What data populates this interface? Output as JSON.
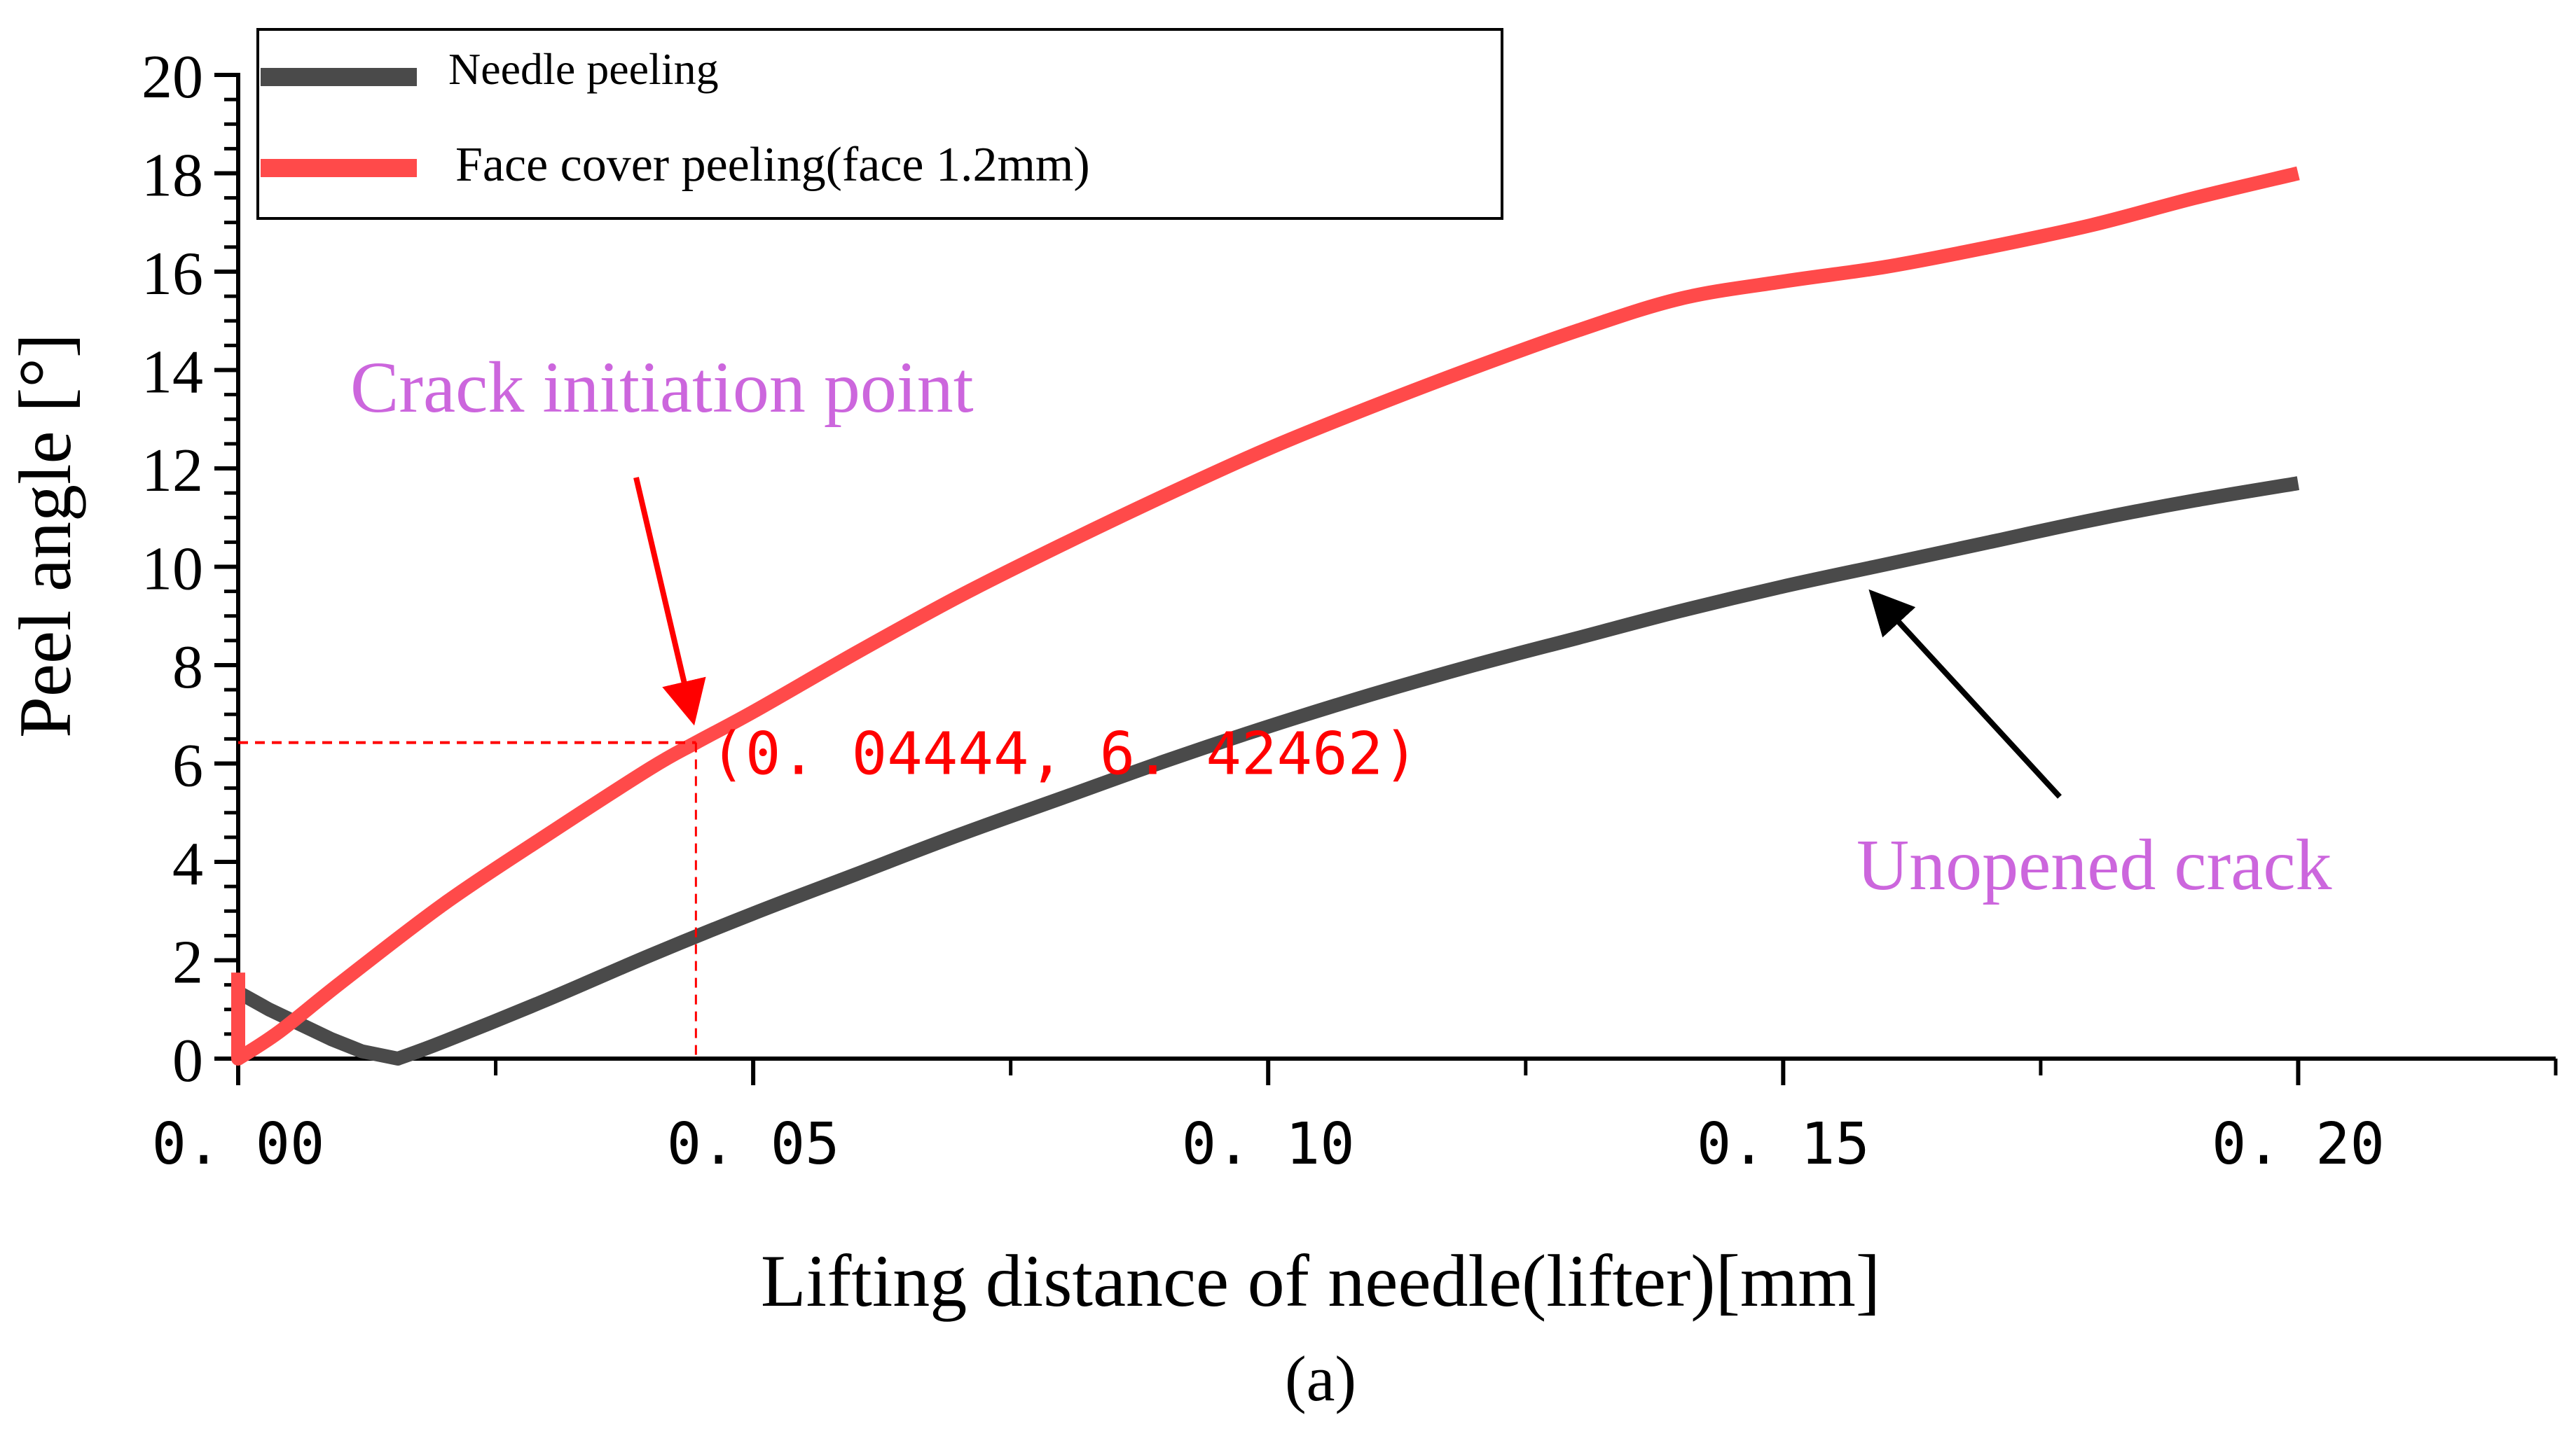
{
  "chart_data": {
    "type": "line",
    "title": "",
    "caption": "(a)",
    "xlabel": "Lifting distance of needle(lifter)[mm]",
    "ylabel": "Peel angle [°]",
    "xlim": [
      0,
      0.225
    ],
    "ylim": [
      0,
      20
    ],
    "x_major_ticks": [
      0.0,
      0.05,
      0.1,
      0.15,
      0.2
    ],
    "x_tick_labels": [
      "0. 00",
      "0. 05",
      "0. 10",
      "0. 15",
      "0. 20"
    ],
    "x_minor_step": 0.025,
    "y_major_ticks": [
      0,
      2,
      4,
      6,
      8,
      10,
      12,
      14,
      16,
      18,
      20
    ],
    "y_tick_labels": [
      "0",
      "2",
      "4",
      "6",
      "8",
      "10",
      "12",
      "14",
      "16",
      "18",
      "20"
    ],
    "y_minor_step": 0.5,
    "grid": false,
    "legend_position": "top-left",
    "series": [
      {
        "name": "Needle peeling",
        "color": "#4a4a4a",
        "points": [
          [
            0.0,
            1.35
          ],
          [
            0.003,
            1.0
          ],
          [
            0.006,
            0.7
          ],
          [
            0.009,
            0.4
          ],
          [
            0.012,
            0.15
          ],
          [
            0.0155,
            0.0
          ],
          [
            0.02,
            0.35
          ],
          [
            0.03,
            1.2
          ],
          [
            0.04,
            2.1
          ],
          [
            0.05,
            2.95
          ],
          [
            0.06,
            3.75
          ],
          [
            0.07,
            4.55
          ],
          [
            0.08,
            5.3
          ],
          [
            0.09,
            6.05
          ],
          [
            0.1,
            6.75
          ],
          [
            0.11,
            7.4
          ],
          [
            0.12,
            8.0
          ],
          [
            0.13,
            8.55
          ],
          [
            0.14,
            9.1
          ],
          [
            0.15,
            9.6
          ],
          [
            0.16,
            10.05
          ],
          [
            0.17,
            10.5
          ],
          [
            0.18,
            10.95
          ],
          [
            0.19,
            11.35
          ],
          [
            0.2,
            11.7
          ]
        ]
      },
      {
        "name": "Face cover peeling(face 1.2mm)",
        "color": "#ff4a4a",
        "points": [
          [
            0.0,
            1.75
          ],
          [
            0.0,
            0.0
          ],
          [
            0.004,
            0.55
          ],
          [
            0.01,
            1.55
          ],
          [
            0.02,
            3.15
          ],
          [
            0.03,
            4.55
          ],
          [
            0.04,
            5.9
          ],
          [
            0.04444,
            6.42462
          ],
          [
            0.05,
            7.05
          ],
          [
            0.06,
            8.25
          ],
          [
            0.07,
            9.4
          ],
          [
            0.08,
            10.45
          ],
          [
            0.09,
            11.45
          ],
          [
            0.1,
            12.4
          ],
          [
            0.11,
            13.25
          ],
          [
            0.12,
            14.05
          ],
          [
            0.13,
            14.8
          ],
          [
            0.14,
            15.45
          ],
          [
            0.15,
            15.8
          ],
          [
            0.16,
            16.1
          ],
          [
            0.17,
            16.5
          ],
          [
            0.18,
            16.95
          ],
          [
            0.19,
            17.5
          ],
          [
            0.2,
            18.0
          ]
        ]
      }
    ],
    "annotations": {
      "crack_point": {
        "x": 0.04444,
        "y": 6.42462,
        "label": "(0. 04444, 6. 42462)",
        "color": "#ff0000"
      },
      "crack_initiation": {
        "text": "Crack initiation point",
        "color": "#cc66dd",
        "arrow_color": "#ff0000",
        "points_to": [
          0.04444,
          6.42462
        ]
      },
      "unopened_crack": {
        "text": "Unopened crack",
        "color": "#cc66dd",
        "arrow_color": "#000000",
        "points_to": [
          0.157,
          9.8
        ]
      }
    }
  }
}
